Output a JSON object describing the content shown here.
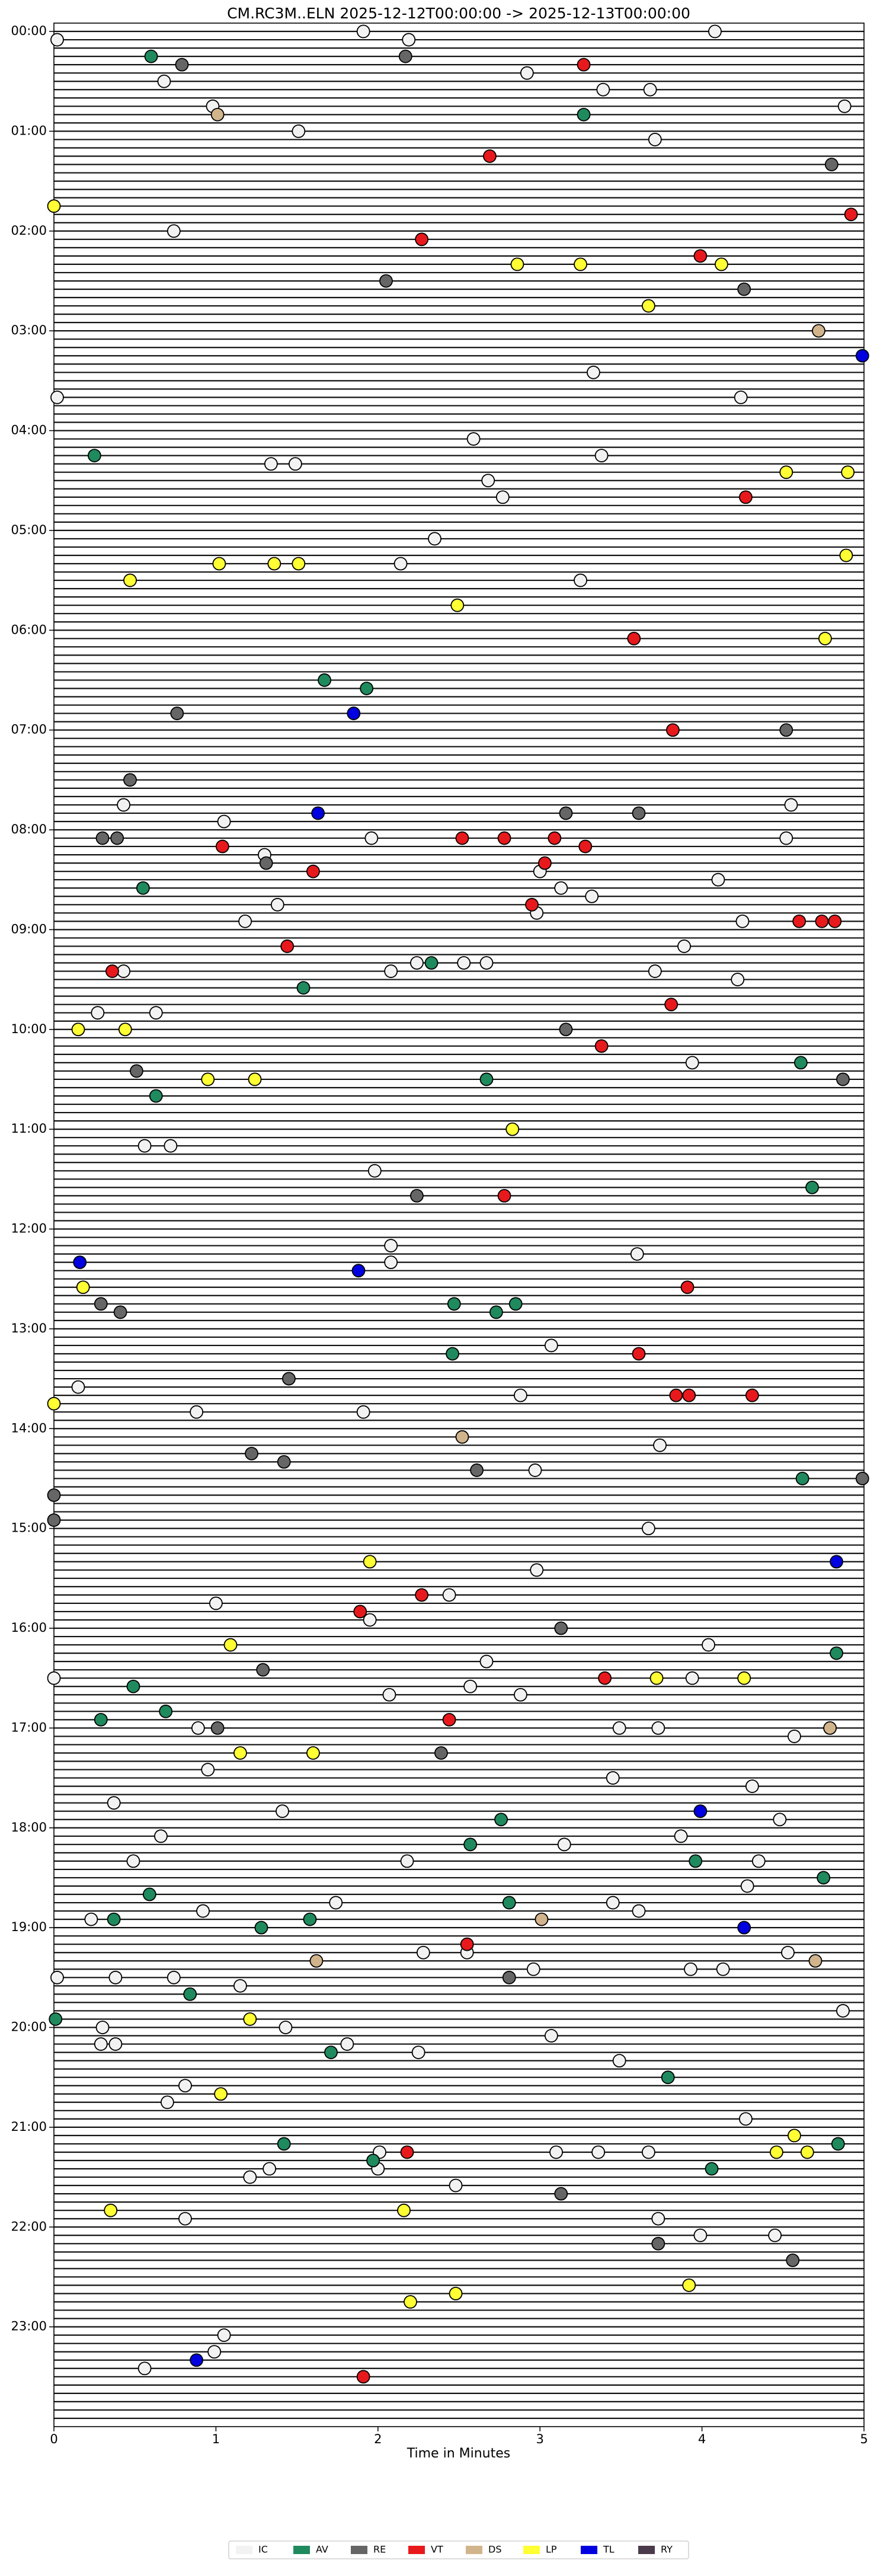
{
  "chart_data": {
    "type": "helicorder",
    "title": "CM.RC3M..ELN  2025-12-12T00:00:00 -> 2025-12-13T00:00:00",
    "x_label": "Time in Minutes",
    "xlim": [
      0,
      5
    ],
    "xticks": [
      0,
      1,
      2,
      3,
      4,
      5
    ],
    "ylim": [
      -1,
      288
    ],
    "yticks": [
      {
        "value": 0,
        "label": "00:00"
      },
      {
        "value": 12,
        "label": "01:00"
      },
      {
        "value": 24,
        "label": "02:00"
      },
      {
        "value": 36,
        "label": "03:00"
      },
      {
        "value": 48,
        "label": "04:00"
      },
      {
        "value": 60,
        "label": "05:00"
      },
      {
        "value": 72,
        "label": "06:00"
      },
      {
        "value": 84,
        "label": "07:00"
      },
      {
        "value": 96,
        "label": "08:00"
      },
      {
        "value": 108,
        "label": "09:00"
      },
      {
        "value": 120,
        "label": "10:00"
      },
      {
        "value": 132,
        "label": "11:00"
      },
      {
        "value": 144,
        "label": "12:00"
      },
      {
        "value": 156,
        "label": "13:00"
      },
      {
        "value": 168,
        "label": "14:00"
      },
      {
        "value": 180,
        "label": "15:00"
      },
      {
        "value": 192,
        "label": "16:00"
      },
      {
        "value": 204,
        "label": "17:00"
      },
      {
        "value": 216,
        "label": "18:00"
      },
      {
        "value": 228,
        "label": "19:00"
      },
      {
        "value": 240,
        "label": "20:00"
      },
      {
        "value": 252,
        "label": "21:00"
      },
      {
        "value": 264,
        "label": "22:00"
      },
      {
        "value": 276,
        "label": "23:00"
      }
    ],
    "series": [
      {
        "name": "IC",
        "color": "#f2f2f2",
        "x": [
          0.02,
          1.91,
          4.08,
          2.19,
          2.92,
          0.68,
          3.68,
          3.39,
          4.88,
          0.98,
          1.51,
          3.71,
          0.74,
          3.33,
          0.02,
          4.24,
          2.59,
          3.38,
          1.34,
          1.49,
          2.68,
          2.77,
          2.35,
          2.14,
          3.25,
          0.43,
          1.05,
          4.55,
          1.96,
          1.3,
          3.0,
          4.52,
          3.13,
          4.1,
          3.32,
          2.98,
          1.38,
          1.18,
          4.25,
          3.89,
          0.43,
          2.08,
          2.24,
          2.53,
          2.67,
          3.71,
          4.22,
          0.27,
          0.63,
          3.94,
          0.56,
          0.72,
          1.98,
          2.08,
          3.6,
          2.08,
          3.07,
          0.15,
          2.88,
          0.88,
          1.91,
          3.74,
          2.97,
          3.67,
          2.98,
          2.44,
          1.0,
          1.95,
          4.04,
          2.67,
          0,
          3.94,
          2.07,
          2.57,
          2.88,
          3.49,
          0.89,
          3.73,
          4.57,
          0.95,
          3.45,
          4.31,
          0.37,
          1.41,
          4.48,
          0.66,
          3.15,
          3.87,
          2.18,
          4.35,
          0.49,
          4.28,
          1.74,
          3.45,
          3.61,
          0.23,
          0.92,
          2.28,
          2.55,
          4.53,
          2.96,
          0.38,
          0.02,
          0.74,
          3.93,
          4.13,
          1.15,
          4.87,
          1.43,
          0.3,
          3.07,
          0.29,
          0.38,
          1.81,
          2.25,
          3.49,
          0.81,
          0.7,
          4.27,
          2.01,
          3.1,
          3.36,
          3.67,
          2.0,
          1.33,
          1.21,
          2.48,
          0.81,
          3.73,
          3.99,
          4.45,
          1.05,
          0.99,
          0.56
        ],
        "rows": [
          1,
          0,
          0,
          1,
          5,
          6,
          7,
          7,
          9,
          9,
          12,
          13,
          24,
          41,
          44,
          44,
          49,
          51,
          52,
          52,
          54,
          56,
          61,
          64,
          66,
          93,
          95,
          93,
          97,
          99,
          101,
          97,
          103,
          102,
          104,
          106,
          105,
          107,
          107,
          110,
          113,
          113,
          112,
          112,
          112,
          113,
          114,
          118,
          118,
          124,
          134,
          134,
          137,
          146,
          147,
          148,
          158,
          163,
          164,
          166,
          166,
          170,
          173,
          180,
          185,
          188,
          189,
          191,
          194,
          196,
          198,
          198,
          200,
          199,
          200,
          204,
          204,
          204,
          205,
          209,
          210,
          211,
          213,
          214,
          215,
          217,
          218,
          217,
          220,
          220,
          220,
          223,
          225,
          225,
          226,
          227,
          226,
          231,
          231,
          231,
          233,
          234,
          234,
          234,
          233,
          233,
          235,
          238,
          240,
          240,
          241,
          242,
          242,
          242,
          243,
          244,
          247,
          249,
          251,
          255,
          255,
          255,
          255,
          257,
          257,
          258,
          259,
          263,
          263,
          265,
          265,
          277,
          279,
          281
        ]
      },
      {
        "name": "AV",
        "color": "#1f8a5e",
        "x": [
          0.6,
          3.27,
          0.25,
          1.67,
          1.93,
          0.55,
          2.33,
          1.54,
          4.61,
          2.67,
          0.63,
          4.68,
          2.47,
          2.73,
          2.85,
          2.46,
          4.62,
          4.83,
          0.49,
          0.69,
          0.29,
          2.76,
          2.57,
          3.96,
          4.75,
          0.59,
          2.81,
          0.37,
          1.28,
          1.58,
          0.84,
          0.01,
          1.71,
          3.79,
          4.84,
          1.42,
          1.97,
          4.06
        ],
        "rows": [
          3,
          10,
          51,
          78,
          79,
          103,
          112,
          115,
          124,
          126,
          128,
          139,
          153,
          154,
          153,
          159,
          174,
          195,
          199,
          202,
          203,
          215,
          218,
          220,
          222,
          224,
          225,
          227,
          228,
          227,
          236,
          239,
          243,
          246,
          254,
          254,
          256,
          257
        ]
      },
      {
        "name": "RE",
        "color": "#666666",
        "x": [
          0.79,
          2.17,
          4.8,
          2.05,
          4.26,
          0.76,
          4.52,
          0.47,
          3.16,
          3.61,
          0.3,
          0.39,
          1.31,
          3.16,
          0.51,
          4.87,
          2.24,
          0.29,
          0.41,
          1.45,
          1.22,
          1.42,
          2.61,
          4.99,
          0,
          0,
          3.13,
          1.29,
          1.01,
          2.39,
          2.81,
          3.13,
          3.73,
          4.56
        ],
        "rows": [
          4,
          3,
          16,
          30,
          31,
          82,
          84,
          90,
          94,
          94,
          97,
          97,
          100,
          120,
          125,
          126,
          140,
          153,
          154,
          162,
          171,
          172,
          173,
          174,
          176,
          179,
          192,
          197,
          204,
          207,
          234,
          260,
          266,
          268
        ]
      },
      {
        "name": "VT",
        "color": "#e8191c",
        "x": [
          3.27,
          2.69,
          4.92,
          2.27,
          3.99,
          4.27,
          3.58,
          3.82,
          1.04,
          2.52,
          2.78,
          3.09,
          3.28,
          3.03,
          1.6,
          2.95,
          4.6,
          4.74,
          4.82,
          1.44,
          0.36,
          3.81,
          3.38,
          2.78,
          3.91,
          3.61,
          3.84,
          3.92,
          4.31,
          2.27,
          1.89,
          3.4,
          2.44,
          2.55,
          2.18,
          1.91
        ],
        "rows": [
          4,
          15,
          22,
          25,
          27,
          56,
          73,
          84,
          98,
          97,
          97,
          97,
          98,
          100,
          101,
          105,
          107,
          107,
          107,
          110,
          113,
          117,
          122,
          140,
          151,
          159,
          164,
          164,
          164,
          188,
          190,
          198,
          203,
          230,
          255,
          282
        ]
      },
      {
        "name": "DS",
        "color": "#d2b48c",
        "x": [
          1.01,
          4.72,
          2.52,
          3.01,
          1.62,
          4.7,
          4.79
        ],
        "rows": [
          10,
          36,
          169,
          227,
          232,
          232,
          204
        ]
      },
      {
        "name": "LP",
        "color": "#ffff33",
        "x": [
          0,
          2.86,
          3.25,
          4.12,
          3.67,
          4.52,
          4.9,
          4.89,
          1.02,
          1.36,
          1.51,
          0.47,
          2.49,
          4.76,
          0.15,
          0.44,
          0.95,
          1.24,
          2.83,
          0.18,
          0,
          1.95,
          1.09,
          3.72,
          4.26,
          1.15,
          1.6,
          1.21,
          1.03,
          4.57,
          4.46,
          4.65,
          0.35,
          2.16,
          3.92,
          2.48,
          2.2
        ],
        "rows": [
          21,
          28,
          28,
          28,
          33,
          53,
          53,
          63,
          64,
          64,
          64,
          66,
          69,
          73,
          120,
          120,
          126,
          126,
          132,
          151,
          165,
          184,
          194,
          198,
          198,
          207,
          207,
          239,
          248,
          253,
          255,
          255,
          262,
          262,
          271,
          272,
          273
        ]
      },
      {
        "name": "TL",
        "color": "#0000e0",
        "x": [
          4.99,
          1.85,
          1.63,
          0.16,
          1.88,
          3.99,
          4.83,
          4.26,
          0.88
        ],
        "rows": [
          39,
          82,
          94,
          148,
          149,
          214,
          184,
          228,
          280
        ]
      },
      {
        "name": "RY",
        "color": "#4b3a4b",
        "x": [],
        "rows": []
      }
    ]
  }
}
